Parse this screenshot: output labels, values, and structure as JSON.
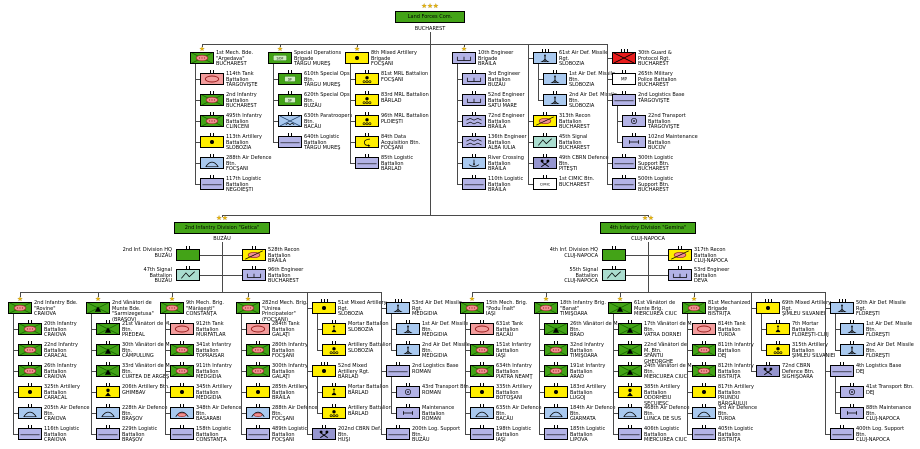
{
  "colors": {
    "green": "#43a317",
    "tank_pink": "#f29c9c",
    "yellow": "#ffee00",
    "blue": "#a9c9ef",
    "lavender": "#b3b3e6",
    "teal": "#aaddcf",
    "slate": "#9595cf",
    "red": "#e81c1c",
    "white": "#ffffff",
    "oval_fill": "#ef8f8f",
    "oval_stroke": "#8d1f1f",
    "line": "#4a4a4a",
    "star": "#e8b50e"
  },
  "root": {
    "n": "Land Forces Com.",
    "l": "BUCHAREST"
  },
  "top_groups": [
    [
      {
        "n": "1st Mech. Bde. \"Argedava\"",
        "l": "BUCHAREST",
        "ic": "mech",
        "sz": "bde",
        "st": true,
        "ch": [
          {
            "n": "114th Tank Battalion",
            "l": "TÂRGOVIŞTE",
            "ic": "tank"
          },
          {
            "n": "2nd Infantry Battalion",
            "l": "BUCHAREST",
            "ic": "mech"
          },
          {
            "n": "495th Infantry Battalion",
            "l": "CLINCENI",
            "ic": "mech"
          },
          {
            "n": "113th Artillery Battalion",
            "l": "SLOBOZIA",
            "ic": "arty"
          },
          {
            "n": "288th Air Defence Btn.",
            "l": "FOCŞANI",
            "ic": "ad"
          },
          {
            "n": "117th Logistic Battalion",
            "l": "NEGOIEŞTI",
            "ic": "log"
          }
        ]
      }
    ],
    [
      {
        "n": "Special Operations Brigade",
        "l": "TÂRGU MUREŞ",
        "ic": "sof",
        "sz": "bde",
        "st": true,
        "ch": [
          {
            "n": "610th Special Ops Btn.",
            "l": "TÂRGU MUREŞ",
            "ic": "sf"
          },
          {
            "n": "620th Special Ops Btn.",
            "l": "BUZĂU",
            "ic": "sf"
          },
          {
            "n": "630th Paratroopers Btn.",
            "l": "BACĂU",
            "ic": "para"
          },
          {
            "n": "640th Logistic Battalion",
            "l": "TÂRGU MUREŞ",
            "ic": "log"
          }
        ]
      }
    ],
    [
      {
        "n": "8th Mixed Artillery Brigade",
        "l": "FOCŞANI",
        "ic": "arty",
        "sz": "bde",
        "st": true,
        "ch": [
          {
            "n": "81st MRL Battalion",
            "l": "FOCŞANI",
            "ic": "mrl"
          },
          {
            "n": "83rd MRL Battalion",
            "l": "BÂRLAD",
            "ic": "mrl"
          },
          {
            "n": "96th MRL Battalion",
            "l": "PLOIEŞTI",
            "ic": "mrl"
          },
          {
            "n": "84th Data Acquisition Btn.",
            "l": "FOCŞANI",
            "ic": "data"
          },
          {
            "n": "85th Logistic Battalion",
            "l": "BÂRLAD",
            "ic": "log"
          }
        ]
      }
    ],
    [
      {
        "n": "10th Engineer Brigade",
        "l": "BRĂILA",
        "ic": "eng",
        "sz": "bde",
        "st": true,
        "ch": [
          {
            "n": "3rd Engineer Battalion",
            "l": "BUZĂU",
            "ic": "eng"
          },
          {
            "n": "52nd Engineer Battalion",
            "l": "SATU MARE",
            "ic": "eng"
          },
          {
            "n": "72nd Engineer Battalion",
            "l": "BRĂILA",
            "ic": "engzig"
          },
          {
            "n": "136th Engineer Battalion",
            "l": "ALBA IULIA",
            "ic": "engzig"
          },
          {
            "n": "River Crossing Battalion",
            "l": "BRĂILA",
            "ic": "river"
          },
          {
            "n": "110th Logistic Battalion",
            "l": "BRĂILA",
            "ic": "log"
          }
        ]
      }
    ],
    [
      {
        "n": "61st Air Def. Missile Rgt.",
        "l": "SLOBOZIA",
        "ic": "adm",
        "sz": "rgt",
        "ch": [
          {
            "n": "1st Air Def. Missile Btn.",
            "l": "SLOBOZIA",
            "ic": "adm"
          },
          {
            "n": "2nd Air Def. Missile Btn.",
            "l": "SLOBOZIA",
            "ic": "adm"
          }
        ]
      },
      {
        "n": "313th Recon Battalion",
        "l": "BUCHAREST",
        "ic": "recon"
      },
      {
        "n": "45th Signal Battalion",
        "l": "BUCHAREST",
        "ic": "signal"
      },
      {
        "n": "49th CBRN Defence Btn.",
        "l": "PITEŞTI",
        "ic": "cbrn"
      },
      {
        "n": "1st CIMIC Btn.",
        "l": "BUCHAREST",
        "ic": "cimic"
      }
    ],
    [
      {
        "n": "30th Guard & Protocol Rgt.",
        "l": "BUCHAREST",
        "ic": "guard",
        "sz": "rgt"
      },
      {
        "n": "265th Military Police Battalion",
        "l": "BUCHAREST",
        "ic": "mp"
      },
      {
        "n": "2nd Logistics Base",
        "l": "TÂRGOVIŞTE",
        "ic": "logbase",
        "sz": "base",
        "ch": [
          {
            "n": "22nd Transport Battalion",
            "l": "TÂRGOVIŞTE",
            "ic": "transport"
          },
          {
            "n": "102nd Maintenance Battalion",
            "l": "BUCOV",
            "ic": "maint"
          }
        ]
      },
      {
        "n": "300th Logistic Support Btn.",
        "l": "BUCHAREST",
        "ic": "log"
      },
      {
        "n": "500th Logistic Support Btn.",
        "l": "BUCHAREST",
        "ic": "log"
      }
    ]
  ],
  "divisions": [
    {
      "n": "2nd Infantry Division \"Getica\"",
      "l": "BUZĂU",
      "hq": {
        "n": "2nd Inf. Division HQ",
        "l": "BUZĂU",
        "ic": "hq"
      },
      "recon": {
        "n": "528th Recon Battalion",
        "l": "BRĂILA",
        "ic": "recon"
      },
      "signal": {
        "n": "47th Signal Battalion",
        "l": "BUZĂU",
        "ic": "signal"
      },
      "eng": {
        "n": "96th Engineer Battalion",
        "l": "BUCHAREST",
        "ic": "eng"
      }
    },
    {
      "n": "4th Infantry Division \"Gemina\"",
      "l": "CLUJ-NAPOCA",
      "hq": {
        "n": "4th Inf. Division HQ",
        "l": "CLUJ-NAPOCA",
        "ic": "hq"
      },
      "recon": {
        "n": "317th Recon Battalion",
        "l": "CLUJ-NAPOCA",
        "ic": "recon"
      },
      "signal": {
        "n": "55th Signal Battalion",
        "l": "CLUJ-NAPOCA",
        "ic": "signal"
      },
      "eng": {
        "n": "53rd Engineer Battalion",
        "l": "DEVA",
        "ic": "eng"
      }
    }
  ],
  "bottom_groups": [
    [
      {
        "n": "2nd Infantry Bde. \"Rovine\"",
        "l": "CRAIOVA",
        "ic": "mech",
        "sz": "bde",
        "st": true,
        "ch": [
          {
            "n": "20th Infantry Battalion",
            "l": "CRAIOVA",
            "ic": "mech"
          },
          {
            "n": "22nd Infantry Battalion",
            "l": "CARACAL",
            "ic": "mech"
          },
          {
            "n": "26th Infantry Battalion",
            "l": "CRAIOVA",
            "ic": "mech"
          },
          {
            "n": "325th Artillery Battalion",
            "l": "CARACAL",
            "ic": "arty"
          },
          {
            "n": "205th Air Defence Btn.",
            "l": "CRAIOVA",
            "ic": "ad"
          },
          {
            "n": "116th Logistic Battalion",
            "l": "CRAIOVA",
            "ic": "log"
          }
        ]
      }
    ],
    [
      {
        "n": "2nd Vânători de Munte Bde.",
        "l": "\"Sarmizegetusa\" (BRAŞOV)",
        "ic": "mountain",
        "sz": "bde",
        "st": true,
        "ch": [
          {
            "n": "21st Vânători de M. Btn.",
            "l": "PREDEAL",
            "ic": "mountain"
          },
          {
            "n": "30th Vânători de M. Btn.",
            "l": "CÂMPULUNG",
            "ic": "mountain"
          },
          {
            "n": "33rd Vânători de M. Btn.",
            "l": "CURTEA DE ARGEŞ",
            "ic": "mountain"
          },
          {
            "n": "206th Artillery Btn.",
            "l": "GHIMBAV",
            "ic": "artymtn"
          },
          {
            "n": "228th Air Defence Btn.",
            "l": "BRAŞOV",
            "ic": "ad"
          },
          {
            "n": "229th Logistic Battalion",
            "l": "BRAŞOV",
            "ic": "log"
          }
        ]
      }
    ],
    [
      {
        "n": "9th Mech. Brig. \"Mărăşeşti\"",
        "l": "CONSTANŢA",
        "ic": "mech",
        "sz": "bde",
        "st": true,
        "ch": [
          {
            "n": "912th Tank Battalion",
            "l": "MURFATLAR",
            "ic": "tank"
          },
          {
            "n": "341st Infantry Battalion",
            "l": "TOPRAISAR",
            "ic": "mech"
          },
          {
            "n": "911th Infantry Battalion",
            "l": "MEDGIDIA",
            "ic": "mech"
          },
          {
            "n": "345th Artillery Battalion",
            "l": "MEDGIDIA",
            "ic": "arty"
          },
          {
            "n": "348th Air Defence Btn.",
            "l": "BASARABI",
            "ic": "adsp"
          },
          {
            "n": "158th Logistic Battalion",
            "l": "CONSTANŢA",
            "ic": "log"
          }
        ]
      }
    ],
    [
      {
        "n": "282nd Mech. Brig. \"Unirea",
        "l": "Principatelor\" (FOCŞANI)",
        "ic": "mech",
        "sz": "bde",
        "st": true,
        "ch": [
          {
            "n": "284th Tank Battalion",
            "l": "GALAŢI",
            "ic": "tank"
          },
          {
            "n": "280th Infantry Battalion",
            "l": "FOCŞANI",
            "ic": "mech"
          },
          {
            "n": "300th Infantry Battalion",
            "l": "GALAŢI",
            "ic": "mech"
          },
          {
            "n": "285th Artillery Battalion",
            "l": "BRĂILA",
            "ic": "arty"
          },
          {
            "n": "288th Air Defence Btn.",
            "l": "FOCŞANI",
            "ic": "adsp"
          },
          {
            "n": "489th Logistic Battalion",
            "l": "FOCŞANI",
            "ic": "log"
          }
        ]
      }
    ],
    [
      {
        "n": "51st Mixed Artillery Rgt.",
        "l": "SLOBOZIA",
        "ic": "arty",
        "sz": "rgt",
        "ch": [
          {
            "n": "Mortar Battalion",
            "l": "SLOBOZIA",
            "ic": "mortar"
          },
          {
            "n": "Artillery Battalion",
            "l": "SLOBOZIA",
            "ic": "mrl"
          }
        ]
      },
      {
        "n": "52nd Mixed Artillery Rgt.",
        "l": "BÂRLAD",
        "ic": "arty",
        "sz": "rgt",
        "ch": [
          {
            "n": "Mortar Battalion",
            "l": "BÂRLAD",
            "ic": "mortar"
          },
          {
            "n": "Artillery Battalion",
            "l": "BÂRLAD",
            "ic": "mrl"
          }
        ]
      },
      {
        "n": "202nd CBRN Def. Btn.",
        "l": "HUŞI",
        "ic": "cbrn"
      }
    ],
    [
      {
        "n": "53rd Air Def. Missile Rgt.",
        "l": "MEDGIDIA",
        "ic": "adm",
        "sz": "rgt",
        "ch": [
          {
            "n": "1st Air Def. Missile Btn.",
            "l": "MEDGIDIA",
            "ic": "adm"
          },
          {
            "n": "2nd Air Def. Missile Btn.",
            "l": "MEDGIDIA",
            "ic": "adm"
          }
        ]
      },
      {
        "n": "2nd Logistics Base",
        "l": "ROMAN",
        "ic": "logbase",
        "sz": "base",
        "ch": [
          {
            "n": "43rd Transport Btn.",
            "l": "ROMAN",
            "ic": "transport"
          },
          {
            "n": "Maintenance Battalion",
            "l": "ROMAN",
            "ic": "maint"
          }
        ]
      },
      {
        "n": "200th Log. Support Btn.",
        "l": "BUZĂU",
        "ic": "log"
      }
    ],
    [
      {
        "n": "15th Mech. Brig. \"Podu Înalt\"",
        "l": "IAŞI",
        "ic": "mech",
        "sz": "bde",
        "st": true,
        "ch": [
          {
            "n": "631st Tank Battalion",
            "l": "BACĂU",
            "ic": "tank"
          },
          {
            "n": "151st Infantry Battalion",
            "l": "IAŞI",
            "ic": "mech"
          },
          {
            "n": "634th Infantry Battalion",
            "l": "PIATRA NEAMŢ",
            "ic": "mech"
          },
          {
            "n": "335th Artillery Battalion",
            "l": "BOTOŞANI",
            "ic": "arty"
          },
          {
            "n": "635th Air Defence Btn.",
            "l": "BACĂU",
            "ic": "ad"
          },
          {
            "n": "198th Logistic Battalion",
            "l": "IAŞI",
            "ic": "log"
          }
        ]
      }
    ],
    [
      {
        "n": "18th Infantry Brig. \"Banat\"",
        "l": "TIMIŞOARA",
        "ic": "mech",
        "sz": "bde",
        "st": true,
        "ch": [
          {
            "n": "26th Vânători de M. Btn.",
            "l": "BRAD",
            "ic": "mountain"
          },
          {
            "n": "32nd Infantry Battalion",
            "l": "TIMIŞOARA",
            "ic": "mech"
          },
          {
            "n": "191st Infantry Battalion",
            "l": "ARAD",
            "ic": "mech"
          },
          {
            "n": "183rd Artillery Battalion",
            "l": "LUGOJ",
            "ic": "arty"
          },
          {
            "n": "184th Air Defence Btn.",
            "l": "GIARMATA",
            "ic": "ad"
          },
          {
            "n": "185th Logistic Battalion",
            "l": "LIPOVA",
            "ic": "log"
          }
        ]
      }
    ],
    [
      {
        "n": "61st Vânători de Munte Brig.",
        "l": "MIERCUREA CIUC",
        "ic": "mountain",
        "sz": "bde",
        "st": true,
        "ch": [
          {
            "n": "17th Vânători de M. Btn.",
            "l": "VATRA DORNEI",
            "ic": "mountain"
          },
          {
            "n": "22nd Vânători de M. Btn.",
            "l": "SFÂNTU GHEORGHE",
            "ic": "mountain"
          },
          {
            "n": "24th Vânători de M. Btn.",
            "l": "MIERCUREA CIUC",
            "ic": "mountain"
          },
          {
            "n": "385th Artillery Battalion",
            "l": "ODORHEIU SECUIESC",
            "ic": "artymtn"
          },
          {
            "n": "468th Air Defence Btn.",
            "l": "LUNCA DE SUS",
            "ic": "ad"
          },
          {
            "n": "406th Logistic Battalion",
            "l": "MIERCUREA CIUC",
            "ic": "log"
          }
        ]
      }
    ],
    [
      {
        "n": "81st Mechanized Brigade",
        "l": "BISTRIŢA",
        "ic": "mech",
        "sz": "bde",
        "st": true,
        "ch": [
          {
            "n": "814th Tank Battalion",
            "l": "TURDA",
            "ic": "tank"
          },
          {
            "n": "811th Infantry Battalion",
            "l": "DEJ",
            "ic": "mech"
          },
          {
            "n": "812th Infantry Battalion",
            "l": "BISTRIŢA",
            "ic": "mech"
          },
          {
            "n": "817th Artillery Battalion",
            "l": "PRUNDU BÂRGĂULUI",
            "ic": "arty"
          },
          {
            "n": "3rd Air Defence Btn.",
            "l": "TURDA",
            "ic": "ad"
          },
          {
            "n": "405th Logistic Battalion",
            "l": "BISTRIŢA",
            "ic": "log"
          }
        ]
      }
    ],
    [
      {
        "n": "69th Mixed Artillery Rgt.",
        "l": "ŞIMLEU SILVANIEI",
        "ic": "arty",
        "sz": "rgt",
        "ch": [
          {
            "n": "7th Mortar Battalion",
            "l": "FLOREŞTI-CLUJ",
            "ic": "mortar"
          },
          {
            "n": "315th Artillery Battalion",
            "l": "ŞIMLEU SILVANIEI",
            "ic": "mrl"
          }
        ]
      },
      {
        "n": "72nd CBRN Defence Btn.",
        "l": "SIGHIŞOARA",
        "ic": "cbrn"
      }
    ],
    [
      {
        "n": "50th Air Def. Missile Rgt.",
        "l": "FLOREŞTI",
        "ic": "adm",
        "sz": "rgt",
        "ch": [
          {
            "n": "1st Air Def. Missile Btn.",
            "l": "FLOREŞTI",
            "ic": "adm"
          },
          {
            "n": "2nd Air Def. Missile Btn.",
            "l": "FLOREŞTI",
            "ic": "adm"
          }
        ]
      },
      {
        "n": "4th Logistics Base",
        "l": "DEJ",
        "ic": "logbase",
        "sz": "base",
        "ch": [
          {
            "n": "41st Transport Btn.",
            "l": "DEJ",
            "ic": "transport"
          },
          {
            "n": "88th Maintenance Btn.",
            "l": "CLUJ-NAPOCA",
            "ic": "maint"
          }
        ]
      },
      {
        "n": "400th Log. Support Btn.",
        "l": "CLUJ-NAPOCA",
        "ic": "log"
      }
    ]
  ]
}
